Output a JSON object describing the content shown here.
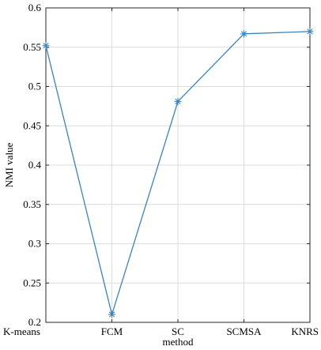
{
  "chart_data": {
    "type": "line",
    "categories": [
      "K-means",
      "FCM",
      "SC",
      "SCMSA",
      "KNRS"
    ],
    "values": [
      0.552,
      0.21,
      0.481,
      0.567,
      0.57
    ],
    "xlabel": "method",
    "ylabel": "NMI value",
    "ylim": [
      0.2,
      0.6
    ],
    "yticks": [
      "0.2",
      "0.25",
      "0.3",
      "0.35",
      "0.4",
      "0.45",
      "0.5",
      "0.55",
      "0.6"
    ],
    "grid": true,
    "marker": "asterisk",
    "line_color": "#3a84c1"
  }
}
